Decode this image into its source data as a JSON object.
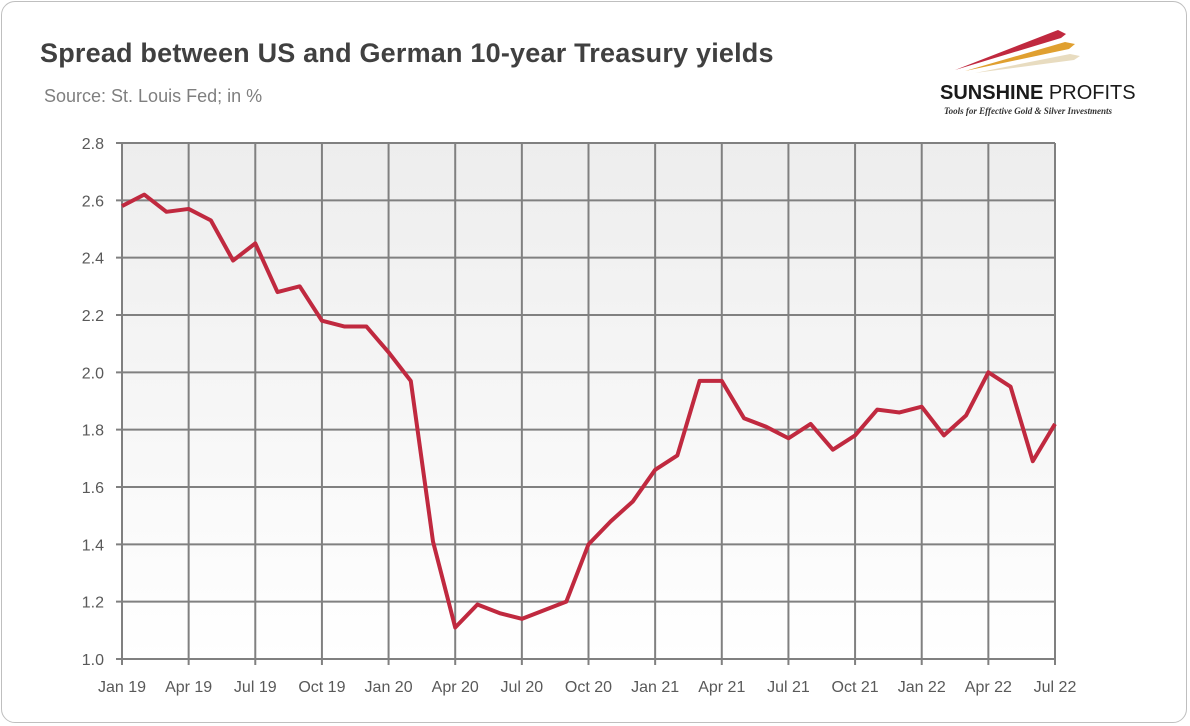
{
  "logo": {
    "name_bold": "SUNSHINE",
    "name_rest": " PROFITS",
    "tagline": "Tools for Effective Gold & Silver Investments"
  },
  "colors": {
    "line": "#c0293f",
    "grid": "#808080",
    "text": "#595959"
  },
  "chart_data": {
    "type": "line",
    "title": "Spread between US and German 10-year Treasury yields",
    "subtitle": "Source: St. Louis Fed; in %",
    "xlabel": "",
    "ylabel": "",
    "ylim": [
      1.0,
      2.8
    ],
    "yticks": [
      "1.0",
      "1.2",
      "1.4",
      "1.6",
      "1.8",
      "2.0",
      "2.2",
      "2.4",
      "2.6",
      "2.8"
    ],
    "xtick_labels": [
      "Jan 19",
      "Apr 19",
      "Jul 19",
      "Oct 19",
      "Jan 20",
      "Apr 20",
      "Jul 20",
      "Oct 20",
      "Jan 21",
      "Apr 21",
      "Jul 21",
      "Oct 21",
      "Jan 22",
      "Apr 22",
      "Jul 22"
    ],
    "grid": true,
    "legend": "none",
    "series": [
      {
        "name": "US-German 10Y spread",
        "x_start": "Jan 2019",
        "frequency": "monthly",
        "values": [
          2.58,
          2.62,
          2.56,
          2.57,
          2.53,
          2.39,
          2.45,
          2.28,
          2.3,
          2.18,
          2.16,
          2.16,
          2.07,
          1.97,
          1.41,
          1.11,
          1.19,
          1.16,
          1.14,
          1.17,
          1.2,
          1.4,
          1.48,
          1.55,
          1.66,
          1.71,
          1.97,
          1.97,
          1.84,
          1.81,
          1.77,
          1.82,
          1.73,
          1.78,
          1.87,
          1.86,
          1.88,
          1.78,
          1.85,
          2.0,
          1.95,
          1.69,
          1.82
        ]
      }
    ]
  }
}
